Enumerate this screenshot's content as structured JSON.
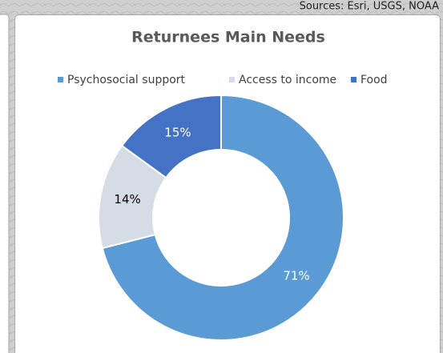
{
  "map": {
    "attribution": "Sources: Esri, USGS, NOAA"
  },
  "chart_data": {
    "type": "donut",
    "title": "Returnees Main Needs",
    "categories": [
      "Psychosocial support",
      "Access to income",
      "Food"
    ],
    "values": [
      71,
      14,
      15
    ],
    "value_labels": [
      "71%",
      "14%",
      "15%"
    ],
    "colors": [
      "#5b9bd5",
      "#d6dce5",
      "#4472c4"
    ],
    "label_colors": [
      "#ffffff",
      "#000000",
      "#ffffff"
    ],
    "legend": "top"
  }
}
